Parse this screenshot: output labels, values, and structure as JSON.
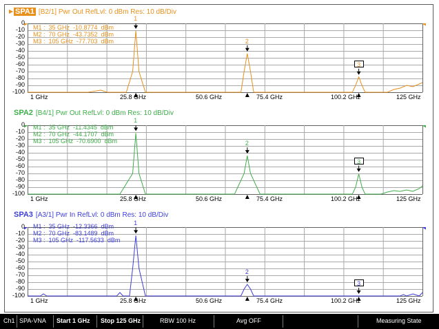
{
  "colors": {
    "spa1": "#e8901c",
    "spa2": "#3fae4a",
    "spa3": "#3d3dd8",
    "grid": "#a8a8a8",
    "status_bg": "#000000",
    "status_text": "#ffffff"
  },
  "y_ticks": [
    "0",
    "-10",
    "-20",
    "-30",
    "-40",
    "-50",
    "-60",
    "-70",
    "-80",
    "-90",
    "-100"
  ],
  "x_ticks": [
    "1 GHz",
    "25.8 GHz",
    "50.6 GHz",
    "75.4 GHz",
    "100.2 GHz",
    "125 GHz"
  ],
  "panels": [
    {
      "name": "SPA1",
      "title": "[B2/1]  Pwr Out RefLvl: 0  dBm Res: 10  dB/Div",
      "markers": [
        "M1 :  35 GHz  -10.8774  dBm",
        "M2 :  70 GHz  -43.7352  dBm",
        "M3 :  105 GHz  -77.703  dBm"
      ],
      "marker_ids": [
        "1",
        "2",
        "3"
      ]
    },
    {
      "name": "SPA2",
      "title": "[B4/1]  Pwr Out RefLvl: 0  dBm Res: 10  dB/Div",
      "markers": [
        "M1 :  35 GHz  -11.4345  dBm",
        "M2 :  70 GHz  -44.1707  dBm",
        "M3 :  105 GHz  -70.6900  dBm"
      ],
      "marker_ids": [
        "1",
        "2",
        "3"
      ]
    },
    {
      "name": "SPA3",
      "title": "[A3/1]  Pwr In RefLvl: 0  dBm Res: 10  dB/Div",
      "markers": [
        "M1 :  35 GHz  -12.3366  dBm",
        "M2 :  70 GHz  -83.1489  dBm",
        "M3 :  105 GHz  -117.5633  dBm"
      ],
      "marker_ids": [
        "1",
        "2",
        "3"
      ]
    }
  ],
  "chart_data": [
    {
      "type": "line",
      "x_unit": "GHz",
      "y_unit": "dBm",
      "xlim": [
        1,
        125
      ],
      "ylim": [
        -100,
        0
      ],
      "x": [
        1,
        20,
        24,
        26,
        30,
        32,
        34,
        35,
        36,
        38,
        50,
        66,
        68,
        69,
        70,
        71,
        72,
        74,
        100,
        103,
        104,
        105,
        106,
        107,
        110,
        112,
        114,
        116,
        118,
        120,
        122,
        124,
        125
      ],
      "values": [
        -100,
        -100,
        -97,
        -100,
        -100,
        -100,
        -70,
        -10.9,
        -70,
        -100,
        -100,
        -100,
        -100,
        -70,
        -43.7,
        -70,
        -100,
        -100,
        -100,
        -100,
        -90,
        -77.7,
        -90,
        -100,
        -100,
        -100,
        -100,
        -96,
        -94,
        -90,
        -92,
        -88,
        -86
      ]
    },
    {
      "type": "line",
      "x_unit": "GHz",
      "y_unit": "dBm",
      "xlim": [
        1,
        125
      ],
      "ylim": [
        -100,
        0
      ],
      "x": [
        1,
        30,
        34,
        35,
        36,
        38,
        66,
        69,
        70,
        71,
        74,
        100,
        103,
        104,
        105,
        106,
        107,
        110,
        112,
        114,
        116,
        118,
        120,
        122,
        124,
        125
      ],
      "values": [
        -100,
        -100,
        -70,
        -11.4,
        -70,
        -100,
        -100,
        -70,
        -44.2,
        -70,
        -100,
        -100,
        -100,
        -90,
        -70.7,
        -90,
        -100,
        -100,
        -100,
        -97,
        -95,
        -96,
        -94,
        -96,
        -92,
        -88
      ]
    },
    {
      "type": "line",
      "x_unit": "GHz",
      "y_unit": "dBm",
      "xlim": [
        1,
        125
      ],
      "ylim": [
        -100,
        0
      ],
      "x": [
        1,
        5,
        6,
        7,
        12,
        29,
        30,
        31,
        33,
        34,
        35,
        36,
        38,
        66,
        68,
        69,
        70,
        71,
        72,
        74,
        103,
        104,
        105,
        106,
        107,
        110,
        118,
        119,
        120,
        122,
        124,
        125
      ],
      "values": [
        -100,
        -100,
        -97,
        -100,
        -100,
        -100,
        -95,
        -100,
        -100,
        -60,
        -12.3,
        -60,
        -100,
        -100,
        -100,
        -90,
        -83.1,
        -90,
        -100,
        -100,
        -100,
        -100,
        -100,
        -100,
        -100,
        -100,
        -100,
        -98,
        -100,
        -97,
        -100,
        -95
      ]
    }
  ],
  "status_bar": {
    "ch": "Ch1",
    "mode": "SPA-VNA",
    "start": "Start 1 GHz",
    "stop": "Stop 125 GHz",
    "rbw": "RBW 100  Hz",
    "avg": "Avg OFF",
    "state": "Measuring State"
  }
}
